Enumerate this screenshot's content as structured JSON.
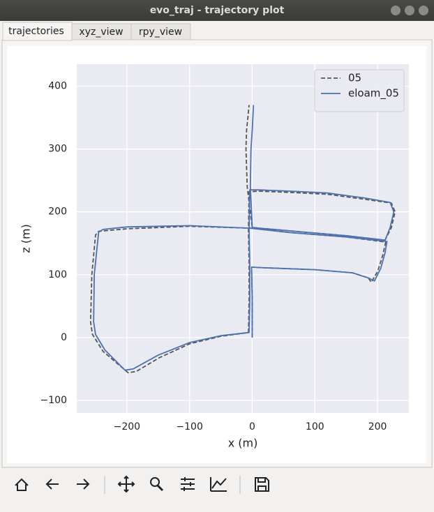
{
  "window": {
    "title": "evo_traj - trajectory plot",
    "tabs": [
      "trajectories",
      "xyz_view",
      "rpy_view"
    ]
  },
  "chart_data": {
    "type": "line",
    "xlabel": "x (m)",
    "ylabel": "z (m)",
    "xlim": [
      -280,
      250
    ],
    "ylim": [
      -120,
      435
    ],
    "xticks": [
      {
        "value": -200,
        "label": "−200"
      },
      {
        "value": -100,
        "label": "−100"
      },
      0,
      100,
      200
    ],
    "yticks": [
      {
        "value": -100,
        "label": "−100"
      },
      0,
      100,
      200,
      300,
      400
    ],
    "grid": true,
    "legend": "upper right",
    "series": [
      {
        "name": "05",
        "color": "#555555",
        "linestyle": "dashed",
        "x": [
          0,
          0,
          -1,
          20,
          100,
          160,
          185,
          190,
          200,
          208,
          213,
          150,
          60,
          -3,
          -100,
          -200,
          -245,
          -250,
          -256,
          -258,
          -255,
          -238,
          -198,
          -185,
          -148,
          -100,
          -50,
          -6,
          -5,
          -5,
          -6,
          -5,
          10,
          60,
          120,
          180,
          222,
          228,
          222,
          212,
          150,
          80,
          0,
          -8,
          -10,
          -9,
          -7,
          -5
        ],
        "y": [
          0,
          60,
          112,
          111,
          108,
          103,
          95,
          88,
          105,
          130,
          152,
          160,
          167,
          174,
          177,
          173,
          169,
          163,
          100,
          25,
          5,
          -22,
          -56,
          -54,
          -32,
          -10,
          2,
          8,
          60,
          120,
          170,
          232,
          233,
          231,
          228,
          220,
          214,
          200,
          175,
          155,
          162,
          168,
          175,
          240,
          300,
          330,
          350,
          370
        ]
      },
      {
        "name": "eloam_05",
        "color": "#4c72b0",
        "linestyle": "solid",
        "x": [
          0,
          0,
          -1,
          20,
          100,
          160,
          185,
          195,
          205,
          212,
          215,
          150,
          60,
          -3,
          -100,
          -200,
          -238,
          -245,
          -252,
          -253,
          -250,
          -235,
          -203,
          -190,
          -150,
          -100,
          -50,
          -5,
          -4,
          -4,
          -5,
          -4,
          10,
          60,
          120,
          180,
          220,
          226,
          220,
          212,
          150,
          80,
          0,
          -3,
          -2,
          0,
          1,
          2
        ],
        "y": [
          0,
          60,
          112,
          111,
          108,
          103,
          95,
          90,
          110,
          135,
          153,
          160,
          167,
          174,
          178,
          176,
          172,
          168,
          100,
          25,
          5,
          -20,
          -52,
          -50,
          -28,
          -8,
          3,
          8,
          60,
          120,
          170,
          235,
          235,
          233,
          230,
          222,
          215,
          200,
          175,
          155,
          162,
          168,
          175,
          240,
          300,
          330,
          350,
          370
        ]
      }
    ]
  }
}
